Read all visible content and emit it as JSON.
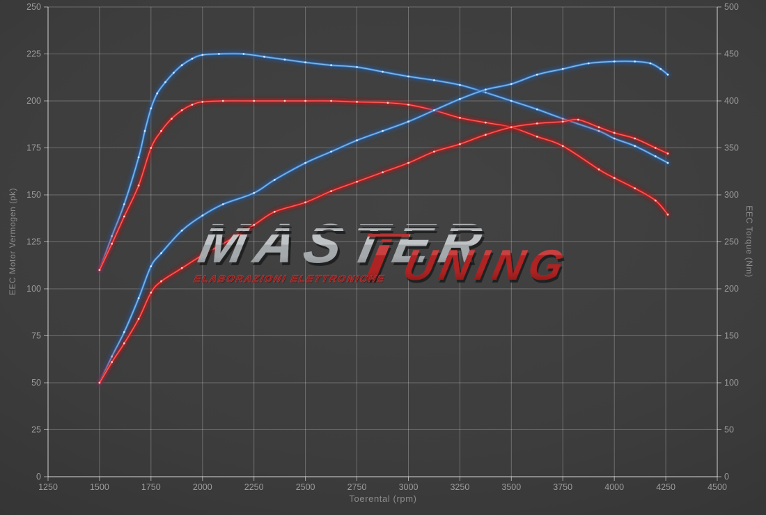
{
  "watermark": {
    "brand": "MASTER",
    "tuning_initial": "T",
    "tuning_rest": "UNING",
    "subtitle": "ELABORAZIONI ELETTRONICHE"
  },
  "colors": {
    "background_center": "#434343",
    "background_edge": "#282828",
    "grid": "rgba(255,255,255,0.26)",
    "frame": "rgba(255,255,255,0.55)",
    "tick_label": "#9c9c9c",
    "axis_title": "#8d8d8d",
    "watermark_silver": "#c6c9cb",
    "watermark_red": "#b32222",
    "watermark_subtitle_red": "#c03434",
    "blue": {
      "halo": "rgba(35,85,160,0.50)",
      "main": "#3c7fc2",
      "core": "#8ec1ee",
      "marker": "#d7e9fa"
    },
    "red": {
      "halo": "rgba(165,25,25,0.50)",
      "main": "#cc2424",
      "core": "#ff6a6a",
      "marker": "#ffd0d0"
    }
  },
  "chart_data": {
    "type": "line",
    "title": "",
    "xlabel": "Toerental (rpm)",
    "ylabel_left": "EEC Motor Vermogen (pk)",
    "ylabel_right": "EEC Torque (Nm)",
    "grid": true,
    "legend": "none",
    "x_range": [
      1250,
      4500
    ],
    "y_left_range": [
      0,
      250
    ],
    "y_right_range": [
      0,
      500
    ],
    "x_ticks": [
      1250,
      1500,
      1750,
      2000,
      2250,
      2500,
      2750,
      3000,
      3250,
      3500,
      3750,
      4000,
      4250,
      4500
    ],
    "y_left_ticks": [
      0,
      25,
      50,
      75,
      100,
      125,
      150,
      175,
      200,
      225,
      250
    ],
    "y_right_ticks": [
      0,
      50,
      100,
      150,
      200,
      250,
      300,
      350,
      400,
      450,
      500
    ],
    "series": [
      {
        "name": "torque-tuned-blue",
        "axis": "right",
        "color": "blue",
        "unit": "Nm",
        "peak": 450,
        "points": [
          [
            1500,
            220
          ],
          [
            1560,
            256
          ],
          [
            1620,
            290
          ],
          [
            1690,
            340
          ],
          [
            1720,
            368
          ],
          [
            1750,
            392
          ],
          [
            1780,
            408
          ],
          [
            1820,
            420
          ],
          [
            1860,
            430
          ],
          [
            1900,
            438
          ],
          [
            1950,
            445
          ],
          [
            2000,
            449
          ],
          [
            2080,
            450
          ],
          [
            2200,
            450
          ],
          [
            2300,
            447
          ],
          [
            2400,
            444
          ],
          [
            2500,
            441
          ],
          [
            2625,
            438
          ],
          [
            2750,
            436
          ],
          [
            2875,
            431
          ],
          [
            3000,
            426
          ],
          [
            3125,
            422
          ],
          [
            3250,
            417
          ],
          [
            3375,
            409
          ],
          [
            3500,
            400
          ],
          [
            3625,
            391
          ],
          [
            3750,
            381
          ],
          [
            3925,
            368
          ],
          [
            4000,
            360
          ],
          [
            4100,
            352
          ],
          [
            4200,
            341
          ],
          [
            4260,
            334
          ]
        ]
      },
      {
        "name": "torque-original-red",
        "axis": "right",
        "color": "red",
        "unit": "Nm",
        "peak": 400,
        "points": [
          [
            1500,
            220
          ],
          [
            1560,
            248
          ],
          [
            1620,
            277
          ],
          [
            1690,
            310
          ],
          [
            1750,
            350
          ],
          [
            1800,
            368
          ],
          [
            1850,
            381
          ],
          [
            1900,
            390
          ],
          [
            1950,
            396
          ],
          [
            2000,
            399
          ],
          [
            2100,
            400
          ],
          [
            2250,
            400
          ],
          [
            2400,
            400
          ],
          [
            2500,
            400
          ],
          [
            2625,
            400
          ],
          [
            2750,
            399
          ],
          [
            2900,
            398
          ],
          [
            3000,
            396
          ],
          [
            3125,
            390
          ],
          [
            3250,
            382
          ],
          [
            3375,
            377
          ],
          [
            3500,
            372
          ],
          [
            3625,
            362
          ],
          [
            3750,
            352
          ],
          [
            3925,
            327
          ],
          [
            4000,
            318
          ],
          [
            4100,
            307
          ],
          [
            4200,
            294
          ],
          [
            4260,
            279
          ]
        ]
      },
      {
        "name": "vermogen-tuned-blue",
        "axis": "left",
        "color": "blue",
        "unit": "pk",
        "peak": 221,
        "points": [
          [
            1500,
            50
          ],
          [
            1560,
            64
          ],
          [
            1620,
            77
          ],
          [
            1690,
            95
          ],
          [
            1750,
            112
          ],
          [
            1800,
            119
          ],
          [
            1900,
            131
          ],
          [
            2000,
            139
          ],
          [
            2100,
            145
          ],
          [
            2250,
            151
          ],
          [
            2350,
            158
          ],
          [
            2500,
            167
          ],
          [
            2625,
            173
          ],
          [
            2750,
            179
          ],
          [
            2875,
            184
          ],
          [
            3000,
            189
          ],
          [
            3125,
            195
          ],
          [
            3250,
            201
          ],
          [
            3375,
            206
          ],
          [
            3500,
            209
          ],
          [
            3625,
            214
          ],
          [
            3750,
            217
          ],
          [
            3875,
            220
          ],
          [
            4000,
            221
          ],
          [
            4100,
            221
          ],
          [
            4175,
            220
          ],
          [
            4225,
            217
          ],
          [
            4260,
            214
          ]
        ]
      },
      {
        "name": "vermogen-original-red",
        "axis": "left",
        "color": "red",
        "unit": "pk",
        "peak": 190,
        "points": [
          [
            1500,
            50
          ],
          [
            1560,
            61
          ],
          [
            1620,
            71
          ],
          [
            1690,
            84
          ],
          [
            1750,
            98
          ],
          [
            1800,
            104
          ],
          [
            1900,
            111
          ],
          [
            2000,
            118
          ],
          [
            2100,
            124
          ],
          [
            2250,
            134
          ],
          [
            2350,
            141
          ],
          [
            2500,
            146
          ],
          [
            2625,
            152
          ],
          [
            2750,
            157
          ],
          [
            2875,
            162
          ],
          [
            3000,
            167
          ],
          [
            3125,
            173
          ],
          [
            3250,
            177
          ],
          [
            3375,
            182
          ],
          [
            3500,
            186
          ],
          [
            3625,
            188
          ],
          [
            3750,
            189
          ],
          [
            3825,
            190
          ],
          [
            3925,
            186
          ],
          [
            4000,
            183
          ],
          [
            4100,
            180
          ],
          [
            4200,
            175
          ],
          [
            4260,
            172
          ]
        ]
      }
    ]
  }
}
